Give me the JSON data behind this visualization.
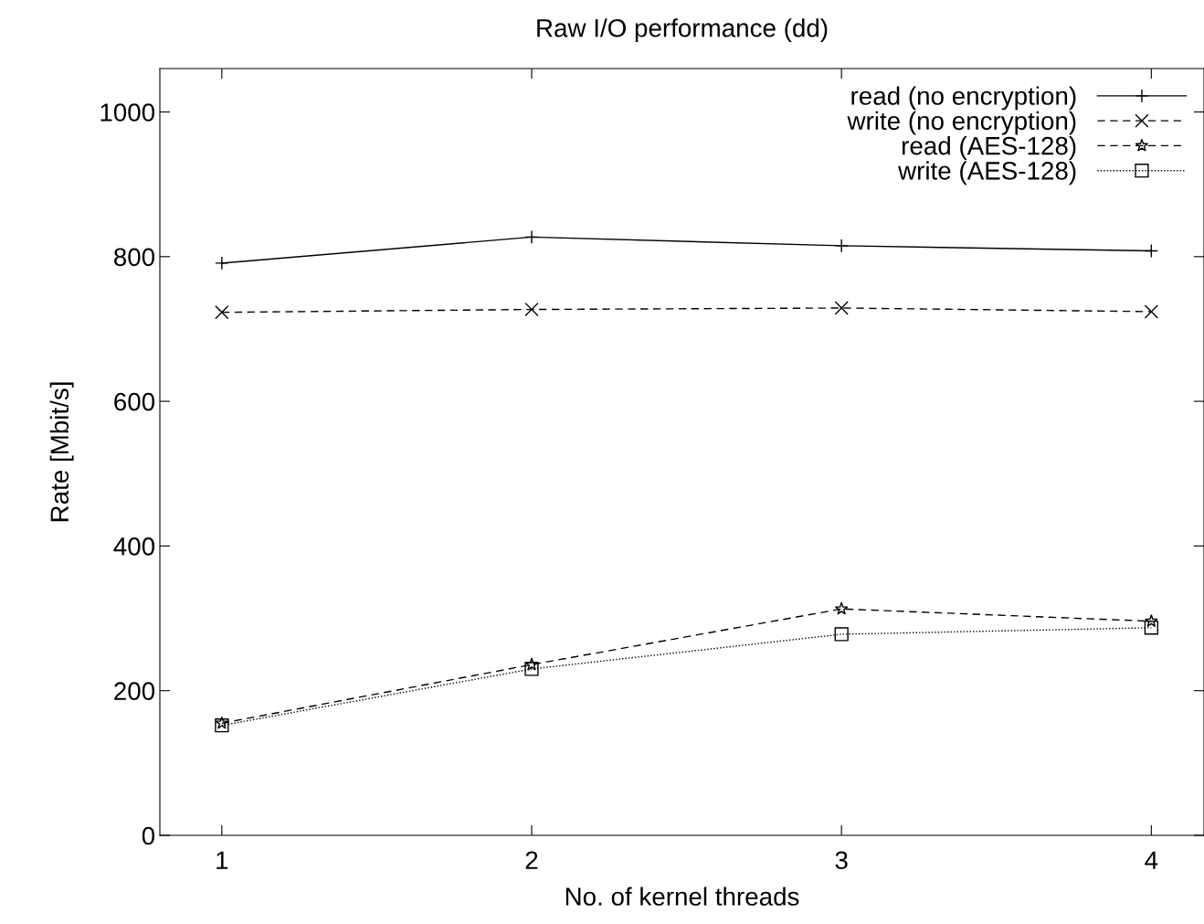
{
  "chart_data": {
    "type": "line",
    "title": "Raw I/O performance (dd)",
    "xlabel": "No. of kernel threads",
    "ylabel": "Rate [Mbit/s]",
    "x": [
      1,
      2,
      3,
      4
    ],
    "xlim": [
      0.8,
      4.17
    ],
    "xticks": [
      1,
      2,
      3,
      4
    ],
    "ylim": [
      0,
      1060
    ],
    "yticks": [
      0,
      200,
      400,
      600,
      800,
      1000
    ],
    "grid": false,
    "legend": "top right",
    "series": [
      {
        "name": "read (no encryption)",
        "color": "#000000",
        "values": [
          791,
          827,
          815,
          808
        ],
        "marker": "plus",
        "line_style": "solid"
      },
      {
        "name": "write (no encryption)",
        "color": "#000000",
        "values": [
          723,
          727,
          729,
          724
        ],
        "marker": "cross",
        "line_style": "dashed"
      },
      {
        "name": "read (AES-128)",
        "color": "#000000",
        "values": [
          155,
          236,
          313,
          296
        ],
        "marker": "star",
        "line_style": "dashed"
      },
      {
        "name": "write (AES-128)",
        "color": "#000000",
        "values": [
          152,
          230,
          278,
          287
        ],
        "marker": "square",
        "line_style": "dotted"
      }
    ]
  }
}
